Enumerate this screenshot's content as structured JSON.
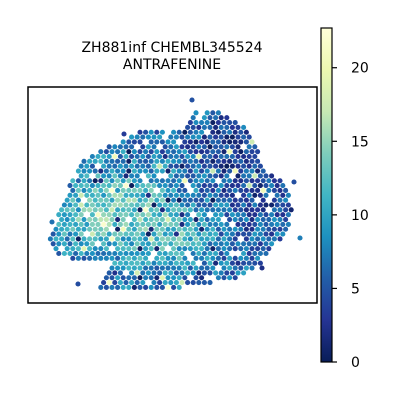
{
  "chart_data": {
    "type": "heatmap",
    "subtype": "hexbin-spatial",
    "title_lines": [
      "ZH881inf CHEMBL345524",
      "ANTRAFENINE"
    ],
    "xlabel": "",
    "ylabel": "",
    "axis_ticks_visible": false,
    "grid": false,
    "colormap": "YlGnBu_r",
    "colorbar": {
      "position": "right",
      "range": [
        0,
        22.7
      ],
      "ticks": [
        0,
        5,
        10,
        15,
        20
      ],
      "tick_labels": [
        "0",
        "5",
        "10",
        "15",
        "20"
      ]
    },
    "value_summary": {
      "min": 0,
      "max": 22.7,
      "typical_range": [
        3,
        14
      ],
      "note_high": "scattered pale yellow hot spots (~18-22) mostly in the left-central region"
    }
  },
  "colors": {
    "cmap_stops": [
      "#081d58",
      "#253494",
      "#225ea8",
      "#1d91c0",
      "#41b6c4",
      "#7fcdbb",
      "#c7e9b4",
      "#edf8b1",
      "#ffffd9"
    ],
    "frame": "#000000",
    "background": "#ffffff"
  }
}
